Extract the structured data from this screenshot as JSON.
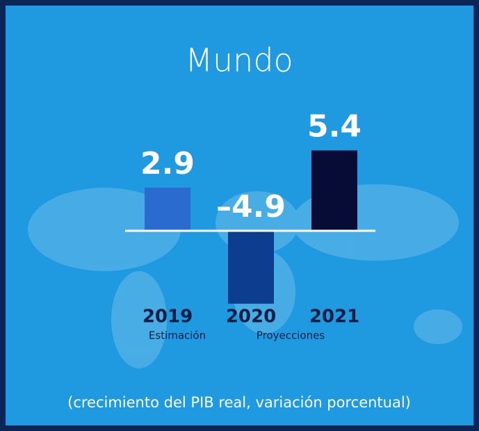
{
  "chart_data": {
    "type": "bar",
    "title": "Mundo",
    "categories": [
      "2019",
      "2020",
      "2021"
    ],
    "values": [
      2.9,
      -4.9,
      5.4
    ],
    "value_labels": [
      "2.9",
      "–4.9",
      "5.4"
    ],
    "colors": [
      "#2a6bd0",
      "#0c3d8e",
      "#060c36"
    ],
    "annotations": [
      "Estimación",
      "Proyecciones"
    ],
    "footnote": "(crecimiento del PIB real, variación porcentual)"
  }
}
